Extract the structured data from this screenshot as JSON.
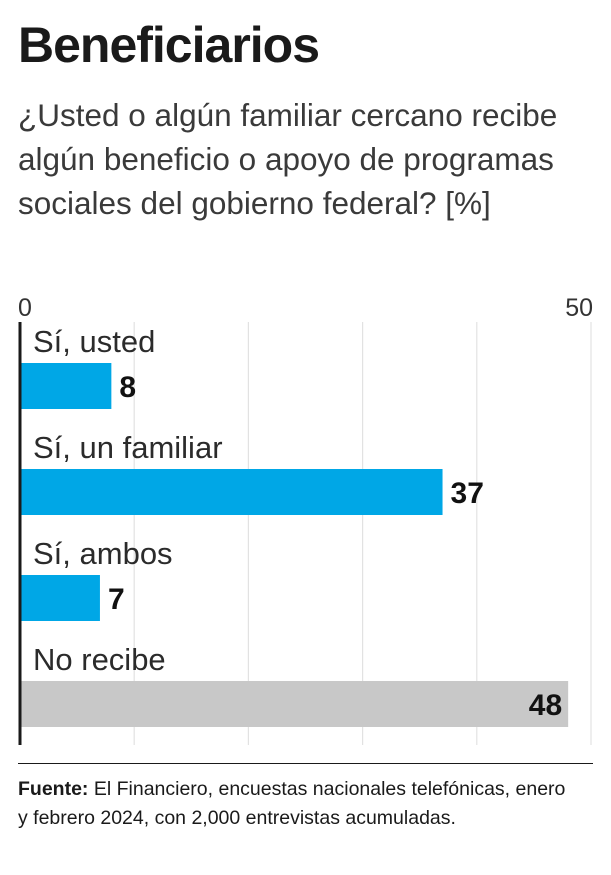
{
  "title": "Beneficiarios",
  "subtitle": "¿Usted o algún familiar cercano recibe algún beneficio o apoyo de programas sociales del gobierno federal? [%]",
  "source": {
    "label": "Fuente:",
    "text": "El Financiero, encuestas nacionales telefónicas, enero y febrero 2024, con 2,000 entrevistas acumuladas."
  },
  "colors": {
    "primary": "#00a7e6",
    "muted": "#c8c8c8",
    "grid": "#e2e2e2",
    "axis": "#1a1a1a"
  },
  "chart_data": {
    "type": "bar",
    "orientation": "horizontal",
    "categories": [
      "Sí, usted",
      "Sí, un familiar",
      "Sí, ambos",
      "No recibe"
    ],
    "values": [
      8,
      37,
      7,
      48
    ],
    "bar_colors": [
      "#00a7e6",
      "#00a7e6",
      "#00a7e6",
      "#c8c8c8"
    ],
    "xlim": [
      0,
      50
    ],
    "x_ticks_labeled": [
      0,
      50
    ],
    "grid": true,
    "unit": "%"
  }
}
